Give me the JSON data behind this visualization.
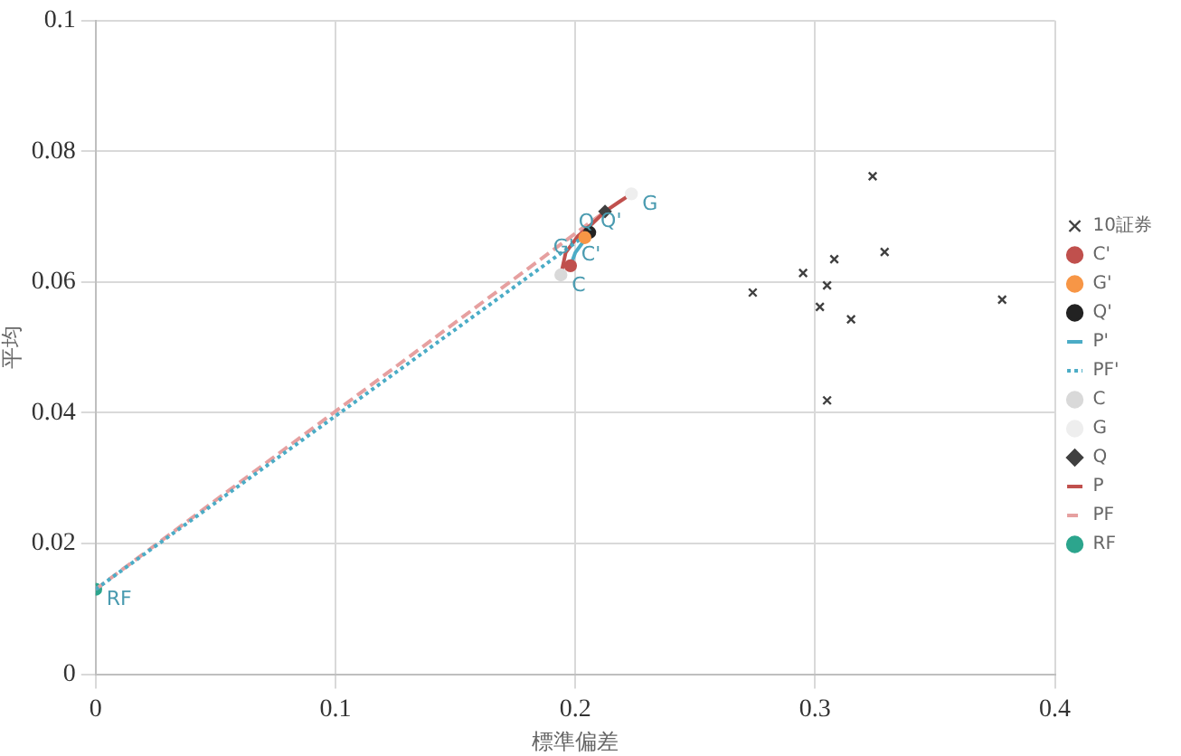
{
  "chart_data": {
    "type": "scatter",
    "xlabel": "標準偏差",
    "ylabel": "平均",
    "xlim": [
      0,
      0.4
    ],
    "ylim": [
      0,
      0.1
    ],
    "xticks": [
      0,
      0.1,
      0.2,
      0.3,
      0.4
    ],
    "yticks": [
      0,
      0.02,
      0.04,
      0.06,
      0.08,
      0.1
    ],
    "grid": true,
    "legend": "right",
    "series": [
      {
        "name": "10証券",
        "marker": "cross",
        "color": "#404040",
        "x": [
          0.274,
          0.295,
          0.308,
          0.324,
          0.329,
          0.305,
          0.302,
          0.315,
          0.305,
          0.378
        ],
        "values": [
          0.0584,
          0.0614,
          0.0635,
          0.0762,
          0.0646,
          0.0595,
          0.0562,
          0.0543,
          0.0419,
          0.0573
        ]
      },
      {
        "name": "C'",
        "marker": "circle",
        "color": "#c0504d",
        "x": [
          0.198
        ],
        "values": [
          0.0625
        ]
      },
      {
        "name": "G'",
        "marker": "circle",
        "color": "#f79646",
        "x": [
          0.204
        ],
        "values": [
          0.0668
        ]
      },
      {
        "name": "Q'",
        "marker": "circle",
        "color": "#222222",
        "x": [
          0.206
        ],
        "values": [
          0.0676
        ]
      },
      {
        "name": "P'",
        "type": "line",
        "line_style": "solid",
        "color": "#4bacc6",
        "x": [
          0.198,
          0.2,
          0.203,
          0.206
        ],
        "values": [
          0.0625,
          0.0645,
          0.066,
          0.0676
        ]
      },
      {
        "name": "PF'",
        "type": "line",
        "line_style": "dotted",
        "color": "#4bacc6",
        "x": [
          0,
          0.206
        ],
        "values": [
          0.013,
          0.0676
        ]
      },
      {
        "name": "C",
        "marker": "circle",
        "color": "#d9d9d9",
        "x": [
          0.194
        ],
        "values": [
          0.0611
        ]
      },
      {
        "name": "G",
        "marker": "circle",
        "color": "#eeeeee",
        "x": [
          0.2234
        ],
        "values": [
          0.0735
        ]
      },
      {
        "name": "Q",
        "marker": "diamond",
        "color": "#404040",
        "x": [
          0.2124
        ],
        "values": [
          0.0708
        ]
      },
      {
        "name": "P",
        "type": "line",
        "line_style": "solid",
        "color": "#c0504d",
        "x": [
          0.194,
          0.196,
          0.201,
          0.207,
          0.2124,
          0.218,
          0.2234
        ],
        "values": [
          0.0611,
          0.0645,
          0.067,
          0.0689,
          0.0708,
          0.0722,
          0.0735
        ]
      },
      {
        "name": "PF",
        "type": "line",
        "line_style": "dashed",
        "color": "#e6a0a0",
        "x": [
          0,
          0.2124
        ],
        "values": [
          0.013,
          0.0708
        ]
      },
      {
        "name": "RF",
        "marker": "circle",
        "color": "#2ca58d",
        "x": [
          0
        ],
        "values": [
          0.013
        ]
      }
    ],
    "annotations": [
      {
        "text": "RF",
        "x": 0,
        "y": 0.013
      },
      {
        "text": "C",
        "x": 0.194,
        "y": 0.0611
      },
      {
        "text": "C'",
        "x": 0.198,
        "y": 0.0625
      },
      {
        "text": "Q'",
        "x": 0.206,
        "y": 0.0676
      },
      {
        "text": "G'",
        "x": 0.204,
        "y": 0.0668
      },
      {
        "text": "Q",
        "x": 0.2124,
        "y": 0.0708
      },
      {
        "text": "G",
        "x": 0.2234,
        "y": 0.0735
      }
    ]
  }
}
